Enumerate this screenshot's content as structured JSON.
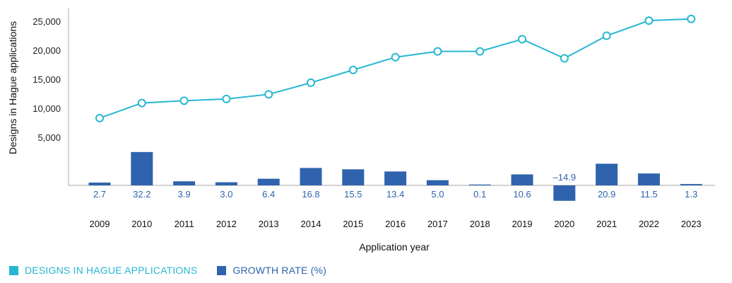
{
  "chart_data": {
    "type": "line+bar",
    "x": [
      "2009",
      "2010",
      "2011",
      "2012",
      "2013",
      "2014",
      "2015",
      "2016",
      "2017",
      "2018",
      "2019",
      "2020",
      "2021",
      "2022",
      "2023"
    ],
    "series": [
      {
        "name": "DESIGNS IN HAGUE APPLICATIONS",
        "type": "line",
        "axis": "left",
        "values": [
          8300,
          10900,
          11300,
          11600,
          12400,
          14400,
          16600,
          18800,
          19800,
          19800,
          21900,
          18600,
          22500,
          25100,
          25400
        ]
      },
      {
        "name": "GROWTH RATE (%)",
        "type": "bar",
        "values": [
          2.7,
          32.2,
          3.9,
          3.0,
          6.4,
          16.8,
          15.5,
          13.4,
          5.0,
          0.1,
          10.6,
          -14.9,
          20.9,
          11.5,
          1.3
        ],
        "labels": [
          "2.7",
          "32.2",
          "3.9",
          "3.0",
          "6.4",
          "16.8",
          "15.5",
          "13.4",
          "5.0",
          "0.1",
          "10.6",
          "–14.9",
          "20.9",
          "11.5",
          "1.3"
        ]
      }
    ],
    "y_ticks": [
      "5,000",
      "10,000",
      "15,000",
      "20,000",
      "25,000"
    ],
    "y_tick_values": [
      5000,
      10000,
      15000,
      20000,
      25000
    ],
    "xlabel": "Application year",
    "ylabel": "Designs in Hague applications",
    "legend_position": "bottom-left",
    "colors": {
      "line": "#27b7d2",
      "bar": "#2f63ad",
      "axis": "#aaaaaa"
    }
  }
}
